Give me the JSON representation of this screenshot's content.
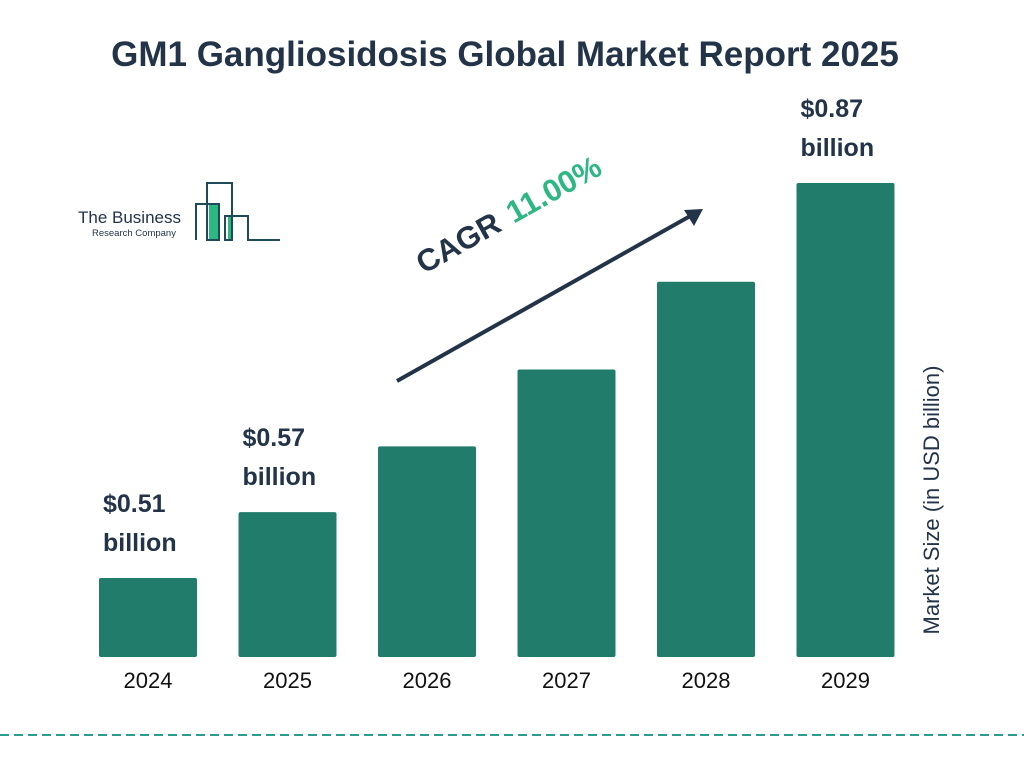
{
  "title": "GM1 Gangliosidosis Global Market Report 2025",
  "logo": {
    "line1": "The Business",
    "line2": "Research Company"
  },
  "cagr": {
    "label": "CAGR",
    "value": "11.00%"
  },
  "colors": {
    "bar": "#217c6b",
    "text": "#233449",
    "accent": "#2db783",
    "divider": "#2a9d8f"
  },
  "chart_data": {
    "type": "bar",
    "title": "GM1 Gangliosidosis Global Market Report 2025",
    "ylabel": "Market Size (in USD billion)",
    "xlabel": "",
    "categories": [
      "2024",
      "2025",
      "2026",
      "2027",
      "2028",
      "2029"
    ],
    "values": [
      0.51,
      0.57,
      0.63,
      0.7,
      0.78,
      0.87
    ],
    "data_labels": [
      "$0.51 billion",
      "$0.57 billion",
      "",
      "",
      "",
      "$0.87 billion"
    ],
    "grid": false,
    "legend": "none"
  }
}
